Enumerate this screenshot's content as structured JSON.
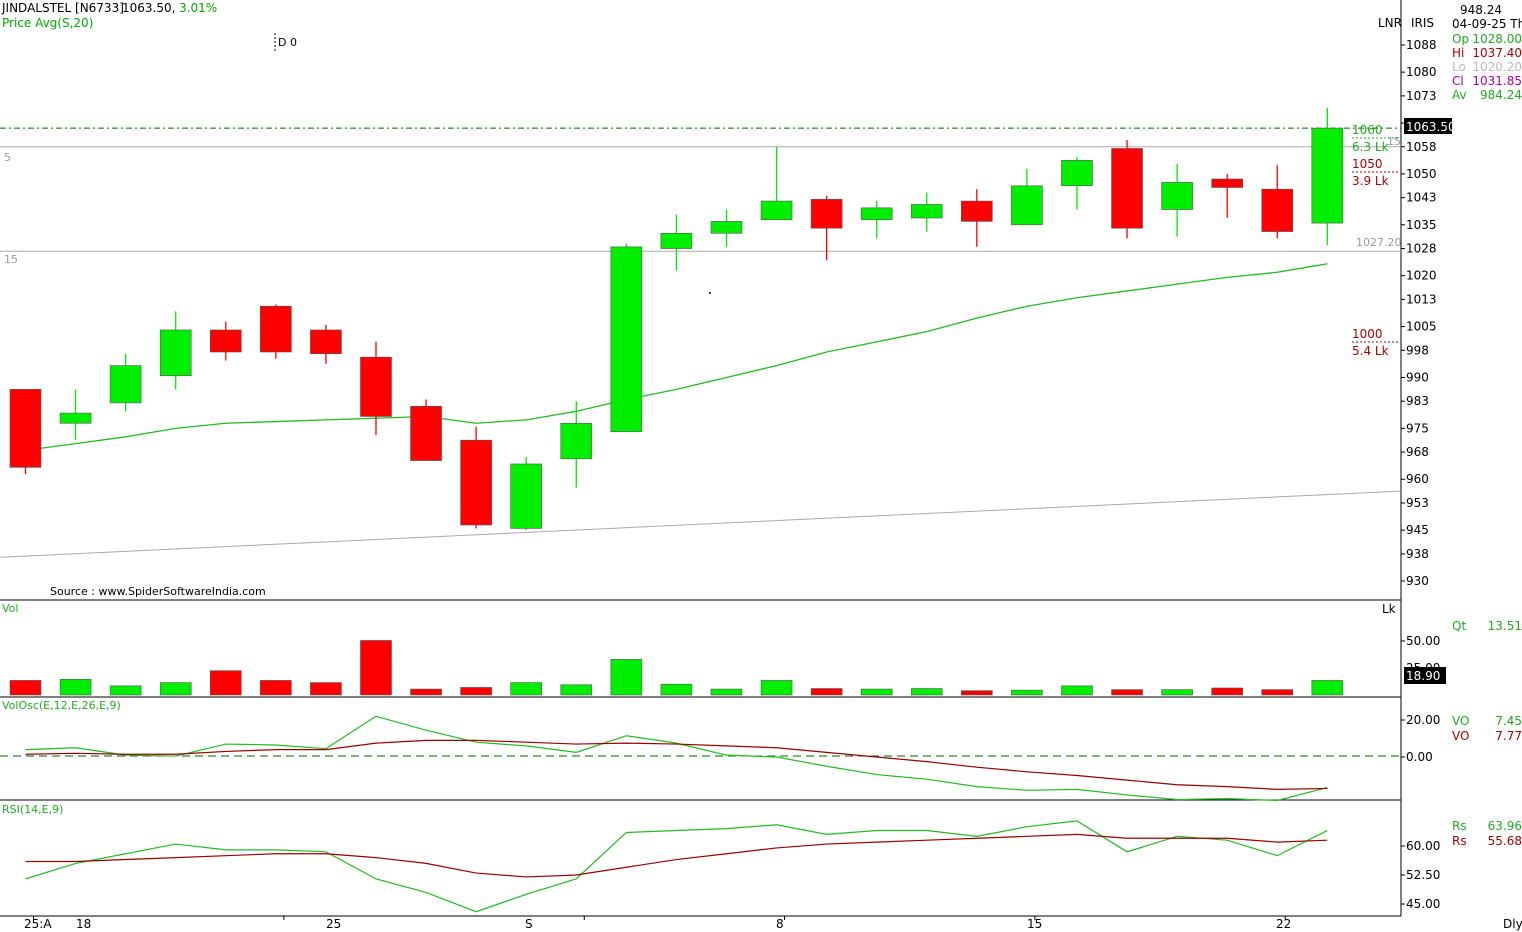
{
  "header": {
    "symbol": "JINDALSTEL [N6733]",
    "last": "1063.50,",
    "change": "3.01%",
    "indicator": "Price  Avg(S,20)",
    "d_label": "D 0",
    "source": "Source : www.SpiderSoftwareIndia.com"
  },
  "info_panel": {
    "top_value": "948.24",
    "date": "04-09-25 Th",
    "lnr": "LNR",
    "iris": "IRIS",
    "op_label": "Op",
    "op_value": "1028.00",
    "hi_label": "Hi",
    "hi_value": "1037.40",
    "lo_label": "Lo",
    "lo_value": "1020.20",
    "cl_label": "Cl",
    "cl_value": "1031.85",
    "av_label": "Av",
    "av_value": "984.24",
    "price_tag": "1063.50"
  },
  "annotations": {
    "left_5": "5",
    "left_15": "15",
    "ann_1060": "1060",
    "ann_63lk": "6.3 Lk",
    "ann_15": "15",
    "ann_1050": "1050",
    "ann_39lk": "3.9 Lk",
    "ann_102720": "1027.20",
    "ann_1000": "1000",
    "ann_54lk": "5.4 Lk"
  },
  "volume_panel": {
    "label": "Vol",
    "unit": "Lk",
    "qt_label": "Qt",
    "qt_value": "13.51",
    "tag": "18.90",
    "ticks": [
      "50.00",
      "25.00"
    ]
  },
  "volosc_panel": {
    "label": "VolOsc(E,12,E,26,E,9)",
    "vo1_label": "VO",
    "vo1_value": "7.45",
    "vo2_label": "VO",
    "vo2_value": "7.77",
    "ticks": [
      "20.00",
      "0.00"
    ]
  },
  "rsi_panel": {
    "label": "RSI(14,E,9)",
    "rs1_label": "Rs",
    "rs1_value": "63.96",
    "rs2_label": "Rs",
    "rs2_value": "55.68",
    "ticks": [
      "60.00",
      "52.50",
      "45.00"
    ]
  },
  "x_axis": {
    "labels": [
      "25:A",
      "18",
      "25",
      "S",
      "8",
      "15",
      "22"
    ],
    "period": "Dly"
  },
  "colors": {
    "up": "#00ee00",
    "down": "#ff0000",
    "sma": "#22bb22",
    "signal": "#990000"
  },
  "chart_data": [
    {
      "type": "candlestick",
      "title": "JINDALSTEL [N6733]",
      "y_ticks": [
        1088,
        1080,
        1073,
        1065,
        1058,
        1050,
        1043,
        1035,
        1028,
        1020,
        1013,
        1005,
        998,
        990,
        983,
        975,
        968,
        960,
        953,
        945,
        938,
        930
      ],
      "ylim": [
        926,
        1092
      ],
      "candles": [
        {
          "o": 986.5,
          "h": 986.5,
          "l": 961.5,
          "c": 963.5
        },
        {
          "o": 976.5,
          "h": 986.5,
          "l": 971.5,
          "c": 979.5
        },
        {
          "o": 982.5,
          "h": 997.0,
          "l": 980.0,
          "c": 993.5
        },
        {
          "o": 990.5,
          "h": 1009.5,
          "l": 986.5,
          "c": 1004.0
        },
        {
          "o": 1004.0,
          "h": 1006.5,
          "l": 995.0,
          "c": 997.5
        },
        {
          "o": 1011.0,
          "h": 1011.5,
          "l": 995.5,
          "c": 997.5
        },
        {
          "o": 1004.0,
          "h": 1005.5,
          "l": 994.0,
          "c": 997.0
        },
        {
          "o": 996.0,
          "h": 1000.5,
          "l": 973.0,
          "c": 978.5
        },
        {
          "o": 981.5,
          "h": 983.5,
          "l": 966.5,
          "c": 965.5
        },
        {
          "o": 971.5,
          "h": 975.5,
          "l": 945.5,
          "c": 946.5
        },
        {
          "o": 945.5,
          "h": 966.5,
          "l": 945.0,
          "c": 964.5
        },
        {
          "o": 966.0,
          "h": 983.0,
          "l": 957.5,
          "c": 976.5
        },
        {
          "o": 974.0,
          "h": 1029.5,
          "l": 974.0,
          "c": 1028.5
        },
        {
          "o": 1028.0,
          "h": 1038.0,
          "l": 1021.5,
          "c": 1032.5
        },
        {
          "o": 1032.5,
          "h": 1039.5,
          "l": 1028.5,
          "c": 1036.0
        },
        {
          "o": 1036.5,
          "h": 1058.0,
          "l": 1036.5,
          "c": 1042.0
        },
        {
          "o": 1042.5,
          "h": 1043.5,
          "l": 1024.5,
          "c": 1034.0
        },
        {
          "o": 1036.5,
          "h": 1042.0,
          "l": 1031.0,
          "c": 1040.0
        },
        {
          "o": 1037.0,
          "h": 1044.5,
          "l": 1033.0,
          "c": 1041.0
        },
        {
          "o": 1042.0,
          "h": 1045.5,
          "l": 1028.5,
          "c": 1036.0
        },
        {
          "o": 1035.0,
          "h": 1051.5,
          "l": 1035.0,
          "c": 1046.5
        },
        {
          "o": 1046.5,
          "h": 1055.0,
          "l": 1039.5,
          "c": 1054.0
        },
        {
          "o": 1057.5,
          "h": 1060.0,
          "l": 1031.0,
          "c": 1034.0
        },
        {
          "o": 1039.5,
          "h": 1053.0,
          "l": 1031.5,
          "c": 1047.5
        },
        {
          "o": 1048.5,
          "h": 1050.0,
          "l": 1037.0,
          "c": 1046.0
        },
        {
          "o": 1045.5,
          "h": 1052.5,
          "l": 1031.0,
          "c": 1033.0
        },
        {
          "o": 1035.5,
          "h": 1069.5,
          "l": 1029.0,
          "c": 1063.5
        }
      ],
      "sma20": [
        968.5,
        970.5,
        972.5,
        975.0,
        976.5,
        977.0,
        977.5,
        978.0,
        978.5,
        976.5,
        977.5,
        980.0,
        983.5,
        986.5,
        990.0,
        993.5,
        997.5,
        1000.5,
        1003.5,
        1007.5,
        1011.0,
        1013.5,
        1015.5,
        1017.5,
        1019.5,
        1021.0,
        1023.5
      ],
      "trendline": [
        [
          0,
          937.0
        ],
        [
          27,
          956.5
        ]
      ],
      "hlines": [
        1063.5,
        1058.0,
        1027.2
      ],
      "levels": [
        1060,
        1050,
        1000
      ]
    },
    {
      "type": "bar",
      "title": "Vol",
      "unit": "Lk",
      "ylim": [
        0,
        71
      ],
      "values": [
        13.5,
        14.5,
        8.5,
        11.5,
        22.5,
        13.5,
        11.5,
        50.5,
        5.5,
        7.0,
        11.5,
        9.5,
        33.0,
        10.0,
        5.5,
        13.5,
        6.0,
        5.5,
        6.0,
        4.0,
        4.5,
        8.5,
        5.0,
        5.0,
        6.5,
        5.0,
        13.5
      ]
    },
    {
      "type": "line",
      "title": "VolOsc(E,12,E,26,E,9)",
      "ylim": [
        -29,
        24
      ],
      "series": [
        {
          "name": "VO",
          "values": [
            4.0,
            5.0,
            1.0,
            0.5,
            7.0,
            6.5,
            4.5,
            22.0,
            14.5,
            8.0,
            6.0,
            2.5,
            11.5,
            7.5,
            1.0,
            0.0,
            -5.0,
            -9.5,
            -12.0,
            -16.0,
            -18.0,
            -17.5,
            -20.5,
            -23.0,
            -22.5,
            -23.5,
            -16.5
          ]
        },
        {
          "name": "VO",
          "values": [
            1.5,
            2.0,
            1.5,
            1.5,
            3.0,
            4.0,
            4.0,
            7.5,
            9.0,
            9.0,
            8.0,
            7.0,
            7.5,
            7.0,
            6.0,
            5.0,
            2.5,
            0.0,
            -2.5,
            -5.5,
            -8.0,
            -10.0,
            -12.5,
            -15.0,
            -16.0,
            -17.5,
            -17.0
          ]
        }
      ]
    },
    {
      "type": "line",
      "title": "RSI(14,E,9)",
      "ylim": [
        42,
        68
      ],
      "series": [
        {
          "name": "Rs",
          "values": [
            51.5,
            55.5,
            58.0,
            60.5,
            59.0,
            59.0,
            58.5,
            51.5,
            48.0,
            43.0,
            47.5,
            51.5,
            63.5,
            64.0,
            64.5,
            65.5,
            63.0,
            64.0,
            64.0,
            62.5,
            65.0,
            66.5,
            58.5,
            62.5,
            61.5,
            57.5,
            64.0
          ]
        },
        {
          "name": "Rs",
          "values": [
            56.0,
            56.0,
            56.5,
            57.0,
            57.5,
            58.0,
            58.0,
            57.0,
            55.5,
            53.0,
            52.0,
            52.5,
            54.5,
            56.5,
            58.0,
            59.5,
            60.5,
            61.0,
            61.5,
            62.0,
            62.5,
            63.0,
            62.0,
            62.0,
            62.0,
            61.0,
            61.5
          ]
        }
      ]
    }
  ]
}
